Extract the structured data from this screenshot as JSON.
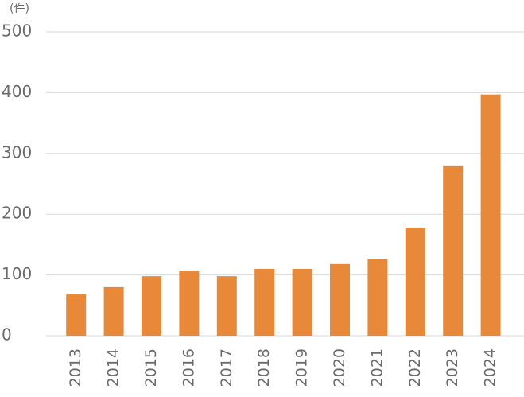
{
  "chart_data": {
    "type": "bar",
    "unit_label": "(件)",
    "categories": [
      "2013",
      "2014",
      "2015",
      "2016",
      "2017",
      "2018",
      "2019",
      "2020",
      "2021",
      "2022",
      "2023",
      "2024"
    ],
    "values": [
      68,
      80,
      98,
      107,
      98,
      110,
      110,
      118,
      126,
      178,
      279,
      397
    ],
    "color": "#e8893a",
    "ylim": [
      0,
      500
    ],
    "yticks": [
      0,
      100,
      200,
      300,
      400,
      500
    ],
    "grid": true
  }
}
